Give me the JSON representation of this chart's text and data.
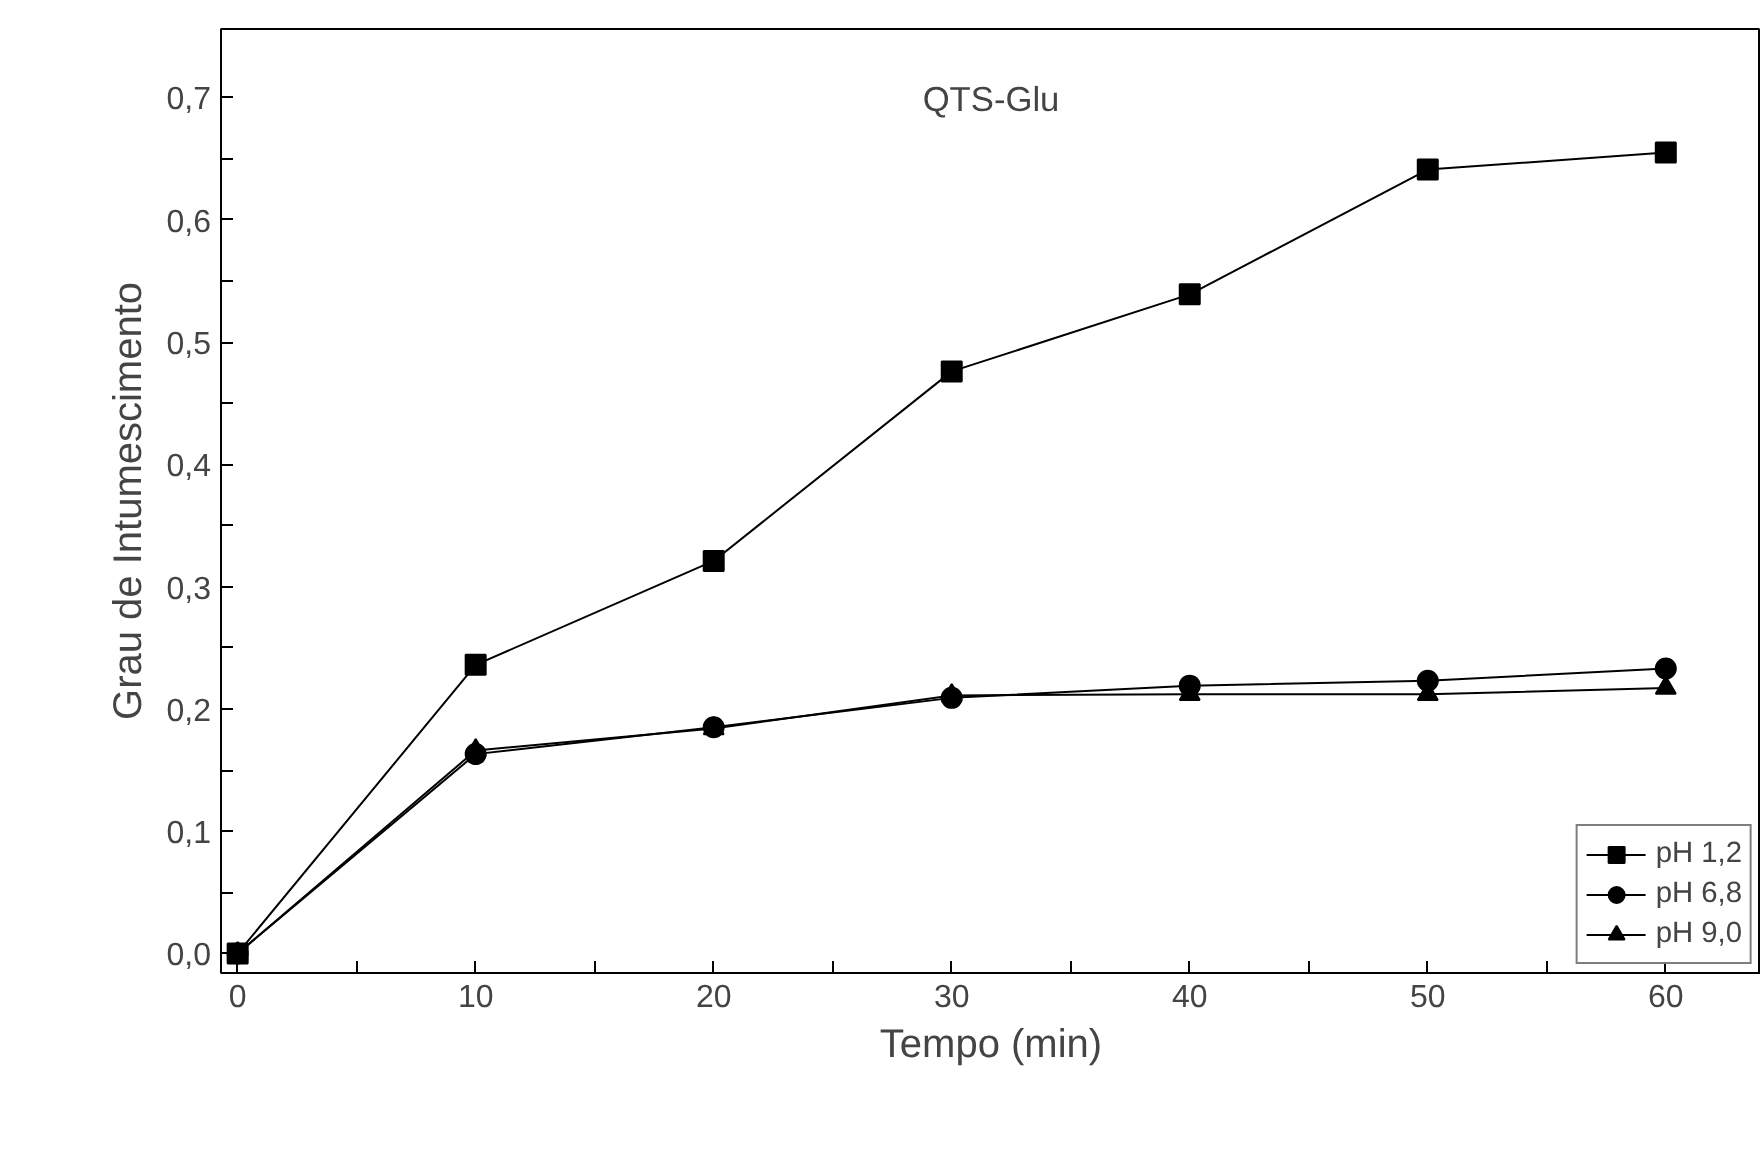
{
  "chart_data": {
    "type": "line",
    "title": "QTS-Glu",
    "xlabel": "Tempo (min)",
    "ylabel": "Grau de Intumescimento",
    "x": [
      0,
      10,
      20,
      30,
      40,
      50,
      60
    ],
    "series": [
      {
        "name": "pH 1,2",
        "color": "#000000",
        "marker": "square",
        "values": [
          0,
          0.236,
          0.321,
          0.476,
          0.539,
          0.641,
          0.655
        ]
      },
      {
        "name": "pH 6,8",
        "color": "#000000",
        "marker": "circle",
        "values": [
          0,
          0.163,
          0.185,
          0.209,
          0.219,
          0.223,
          0.233
        ]
      },
      {
        "name": "pH 9,0",
        "color": "#000000",
        "marker": "triangle",
        "values": [
          0,
          0.166,
          0.184,
          0.211,
          0.212,
          0.212,
          0.217
        ]
      }
    ],
    "xlim": [
      -0.7,
      64
    ],
    "ylim": [
      -0.016,
      0.756
    ],
    "xticks": [
      0,
      {
        "value": 5,
        "label": null
      },
      10,
      {
        "value": 15,
        "label": null
      },
      20,
      {
        "value": 25,
        "label": null
      },
      30,
      {
        "value": 35,
        "label": null
      },
      40,
      {
        "value": 45,
        "label": null
      },
      50,
      {
        "value": 55,
        "label": null
      },
      60
    ],
    "yticks": [
      {
        "value": 0,
        "label": "0,0"
      },
      {
        "value": 0.05,
        "label": null
      },
      {
        "value": 0.1,
        "label": "0,1"
      },
      {
        "value": 0.15,
        "label": null
      },
      {
        "value": 0.2,
        "label": "0,2"
      },
      {
        "value": 0.25,
        "label": null
      },
      {
        "value": 0.3,
        "label": "0,3"
      },
      {
        "value": 0.35,
        "label": null
      },
      {
        "value": 0.4,
        "label": "0,4"
      },
      {
        "value": 0.45,
        "label": null
      },
      {
        "value": 0.5,
        "label": "0,5"
      },
      {
        "value": 0.55,
        "label": null
      },
      {
        "value": 0.6,
        "label": "0,6"
      },
      {
        "value": 0.65,
        "label": null
      },
      {
        "value": 0.7,
        "label": "0,7"
      }
    ],
    "grid": false,
    "legend": "bottom right",
    "line_style": "solid"
  }
}
